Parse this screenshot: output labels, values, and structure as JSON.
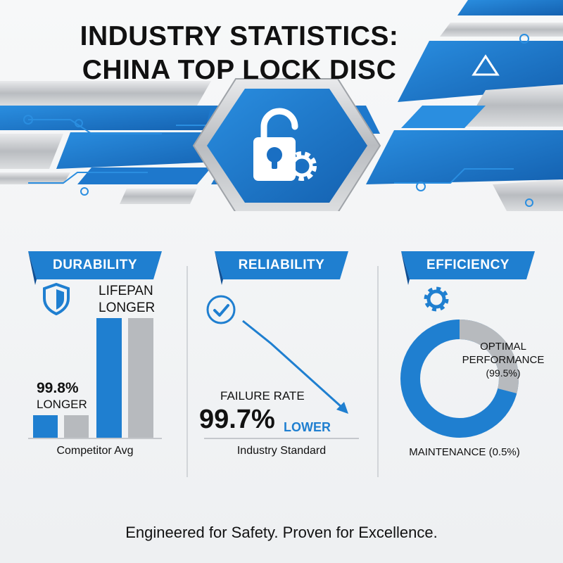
{
  "title_line1": "INDUSTRY STATISTICS:",
  "title_line2": "CHINA TOP LOCK DISC",
  "icons": {
    "banner": "padlock-gear-icon",
    "durability": "shield-icon",
    "reliability": "check-circle-icon",
    "efficiency": "gear-icon"
  },
  "colors": {
    "accent": "#1f7fd0",
    "dark_blue": "#1565b5",
    "silver": "#b7babe",
    "text": "#111111"
  },
  "durability": {
    "label": "DURABILITY",
    "lifespan_line1": "LIFEPAN",
    "lifespan_line2": "LONGER",
    "percent": "99.8%",
    "percent_suffix": "LONGER",
    "caption": "Competitor Avg"
  },
  "reliability": {
    "label": "RELIABILITY",
    "failure_label": "FAILURE RATE",
    "percent": "99.7%",
    "suffix": "LOWER",
    "caption": "Industry Standard"
  },
  "efficiency": {
    "label": "EFFICIENCY",
    "optimal_line1": "OPTIMAL",
    "optimal_line2": "PERFORMANCE",
    "optimal_value": "(99.5%)",
    "maintenance": "MAINTENANCE (0.5%)"
  },
  "footer": "Engineered for Safety. Proven for Excellence."
}
